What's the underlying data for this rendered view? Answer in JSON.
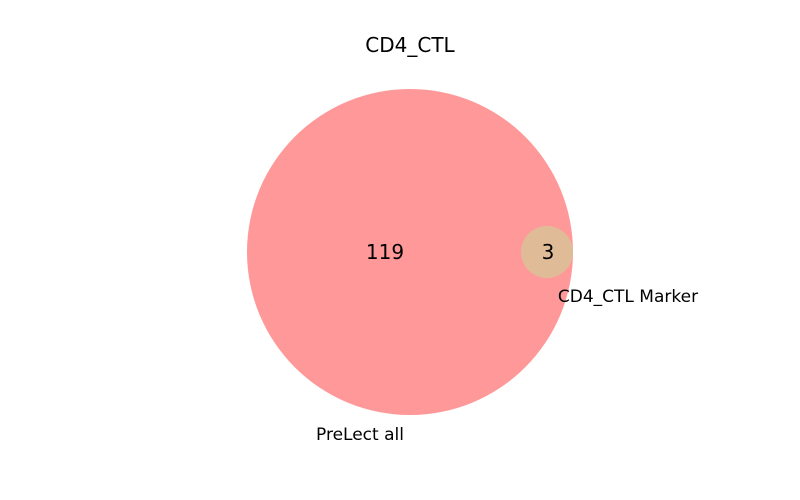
{
  "diagram": {
    "type": "venn",
    "title": "CD4_CTL",
    "sets": [
      {
        "name": "PreLect all",
        "count": "119",
        "color": "#ff9999"
      },
      {
        "name": "CD4_CTL Marker",
        "count": "3",
        "color": "#e0bb97"
      }
    ],
    "overlap_count": "",
    "notes": "Both circles shown; small set lies at the edge of the large set"
  }
}
